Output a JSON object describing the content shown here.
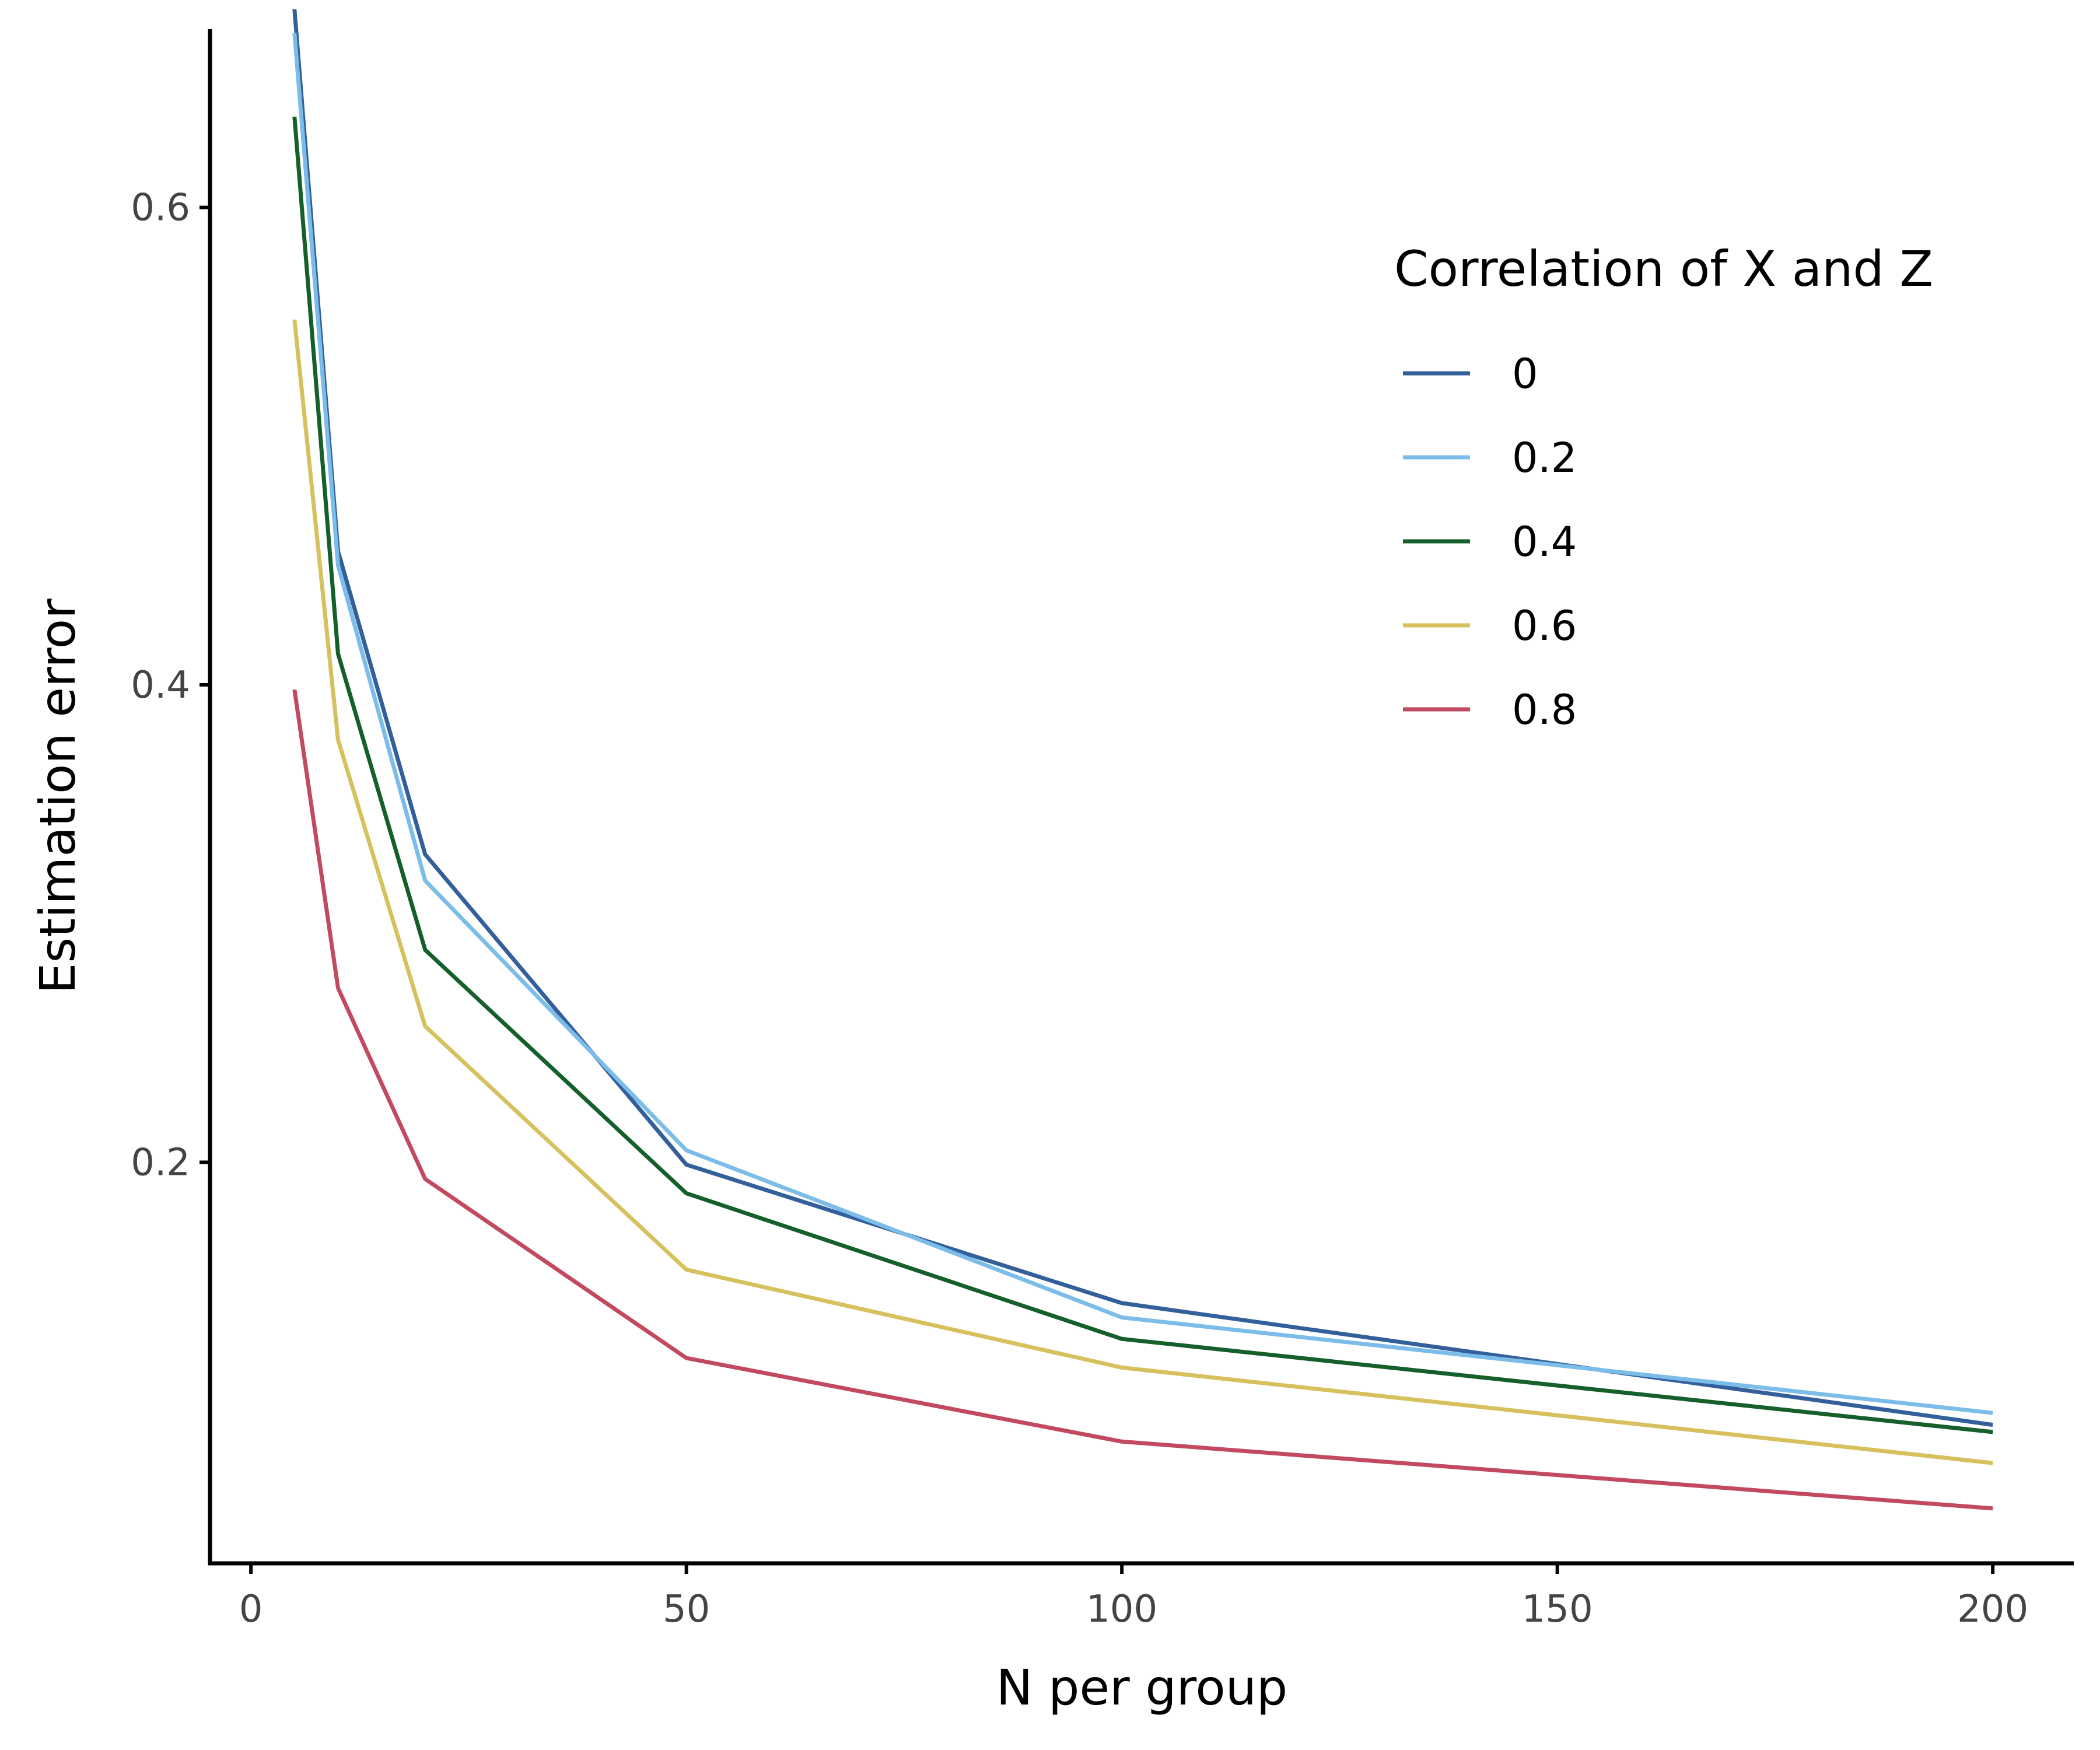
{
  "chart_data": {
    "type": "line",
    "title": "",
    "xlabel": "N per group",
    "ylabel": "Estimation error",
    "x": [
      5,
      10,
      20,
      50,
      100,
      200
    ],
    "xlim": [
      -4.7,
      209.3
    ],
    "ylim": [
      0.032,
      0.682
    ],
    "xticks": [
      0,
      50,
      100,
      150,
      200
    ],
    "xtick_labels": [
      "0",
      "50",
      "100",
      "150",
      "200"
    ],
    "yticks": [
      0.2,
      0.4,
      0.6
    ],
    "ytick_labels": [
      "0.2",
      "0.4",
      "0.6"
    ],
    "grid": false,
    "legend": {
      "title": "Correlation of X and Z",
      "position": "top-right"
    },
    "series": [
      {
        "name": "0",
        "color": "#33609a",
        "values": [
          0.683,
          0.456,
          0.329,
          0.199,
          0.141,
          0.09
        ]
      },
      {
        "name": "0.2",
        "color": "#7bbde8",
        "values": [
          0.673,
          0.45,
          0.318,
          0.205,
          0.135,
          0.095
        ]
      },
      {
        "name": "0.4",
        "color": "#155f2a",
        "values": [
          0.638,
          0.413,
          0.289,
          0.187,
          0.126,
          0.087
        ]
      },
      {
        "name": "0.6",
        "color": "#d7c05e",
        "values": [
          0.553,
          0.377,
          0.257,
          0.155,
          0.114,
          0.074
        ]
      },
      {
        "name": "0.8",
        "color": "#c24a60",
        "values": [
          0.398,
          0.273,
          0.193,
          0.118,
          0.083,
          0.055
        ]
      }
    ]
  }
}
